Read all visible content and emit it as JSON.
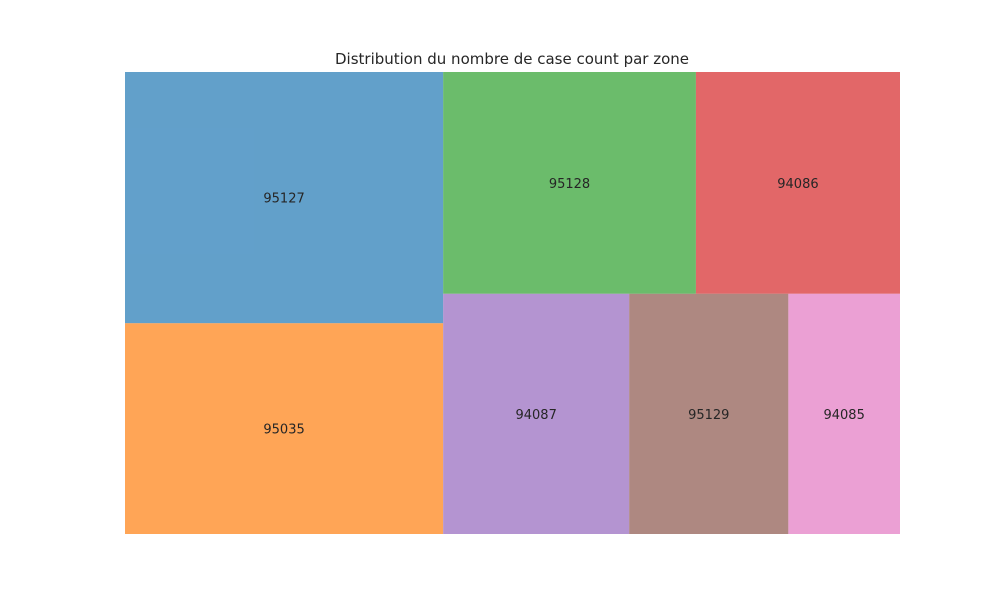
{
  "chart_data": {
    "type": "treemap",
    "title": "Distribution du nombre de case count par zone",
    "tiles": [
      {
        "label": "95127",
        "value": 1526,
        "color": "#1f77b4"
      },
      {
        "label": "95035",
        "value": 1280,
        "color": "#ff7f0e"
      },
      {
        "label": "95128",
        "value": 1070,
        "color": "#2ca02c"
      },
      {
        "label": "94086",
        "value": 864,
        "color": "#d62728"
      },
      {
        "label": "94087",
        "value": 853,
        "color": "#9467bd"
      },
      {
        "label": "95129",
        "value": 730,
        "color": "#8c564b"
      },
      {
        "label": "94085",
        "value": 512,
        "color": "#e377c2"
      }
    ],
    "alpha": 0.7
  }
}
